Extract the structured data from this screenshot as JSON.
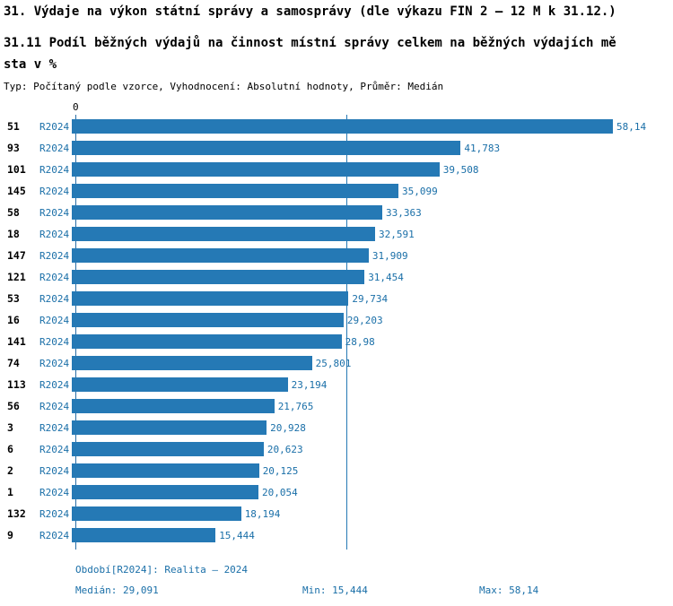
{
  "header": {
    "title": "31. Výdaje na výkon státní správy a samosprávy (dle výkazu FIN 2 – 12 M k 31.12.)",
    "subtitle": "31.11 Podíl běžných výdajů na činnost místní správy celkem na běžných výdajích města v %",
    "meta": "Typ: Počítaný podle vzorce, Vyhodnocení: Absolutní hodnoty, Průměr: Medián"
  },
  "chart_data": {
    "type": "bar",
    "orientation": "horizontal",
    "title": "31.11 Podíl běžných výdajů na činnost místní správy celkem na běžných výdajích města v %",
    "series_label": "R2024",
    "categories": [
      "51",
      "93",
      "101",
      "145",
      "58",
      "18",
      "147",
      "121",
      "53",
      "16",
      "141",
      "74",
      "113",
      "56",
      "3",
      "6",
      "2",
      "1",
      "132",
      "9"
    ],
    "values": [
      58.14,
      41.783,
      39.508,
      35.099,
      33.363,
      32.591,
      31.909,
      31.454,
      29.734,
      29.203,
      28.98,
      25.801,
      23.194,
      21.765,
      20.928,
      20.623,
      20.125,
      20.054,
      18.194,
      15.444
    ],
    "value_labels": [
      "58,14",
      "41,783",
      "39,508",
      "35,099",
      "33,363",
      "32,591",
      "31,909",
      "31,454",
      "29,734",
      "29,203",
      "28,98",
      "25,801",
      "23,194",
      "21,765",
      "20,928",
      "20,623",
      "20,125",
      "20,054",
      "18,194",
      "15,444"
    ],
    "xlim": [
      0,
      58.14
    ],
    "zero_label": "0",
    "median_value": 29.091,
    "grid": "median-line-only",
    "legend_position": "none",
    "bar_color": "#2579b5",
    "label_color": "#1a6fa8"
  },
  "footer": {
    "period": "Období[R2024]: Realita – 2024",
    "median": "Medián: 29,091",
    "min": "Min: 15,444",
    "max": "Max: 58,14"
  }
}
